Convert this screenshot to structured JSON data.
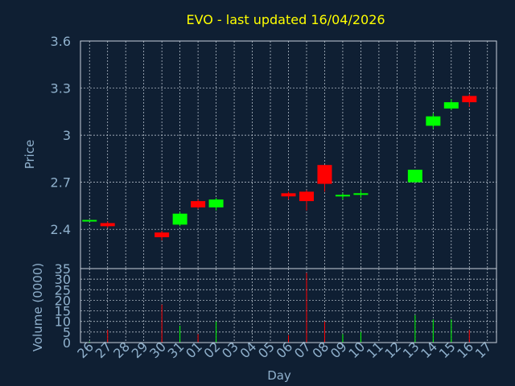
{
  "chart_data": {
    "type": "candlestick",
    "title": "EVO - last updated 16/04/2026",
    "xlabel": "Day",
    "price_ylabel": "Price",
    "volume_ylabel": "Volume (0000)",
    "price_ylim": [
      2.15,
      3.6
    ],
    "price_yticks": [
      2.4,
      2.7,
      3,
      3.3,
      3.6
    ],
    "volume_ylim": [
      0,
      35
    ],
    "volume_yticks": [
      0,
      5,
      10,
      15,
      20,
      25,
      30,
      35
    ],
    "x_ticks": [
      "26",
      "27",
      "28",
      "29",
      "30",
      "31",
      "01",
      "02",
      "03",
      "04",
      "05",
      "06",
      "07",
      "08",
      "09",
      "10",
      "11",
      "12",
      "13",
      "14",
      "15",
      "16",
      "17"
    ],
    "grid": true,
    "colors": {
      "up": "#00ff00",
      "down": "#ff0000",
      "title": "#ffff00",
      "axis_text": "#8fb0cc",
      "background": "#0f1f33",
      "grid": "#c8d2dc"
    },
    "candles": [
      {
        "day": "26",
        "open": 2.45,
        "close": 2.46,
        "high": 2.46,
        "low": 2.45,
        "volume": 0.5
      },
      {
        "day": "27",
        "open": 2.44,
        "close": 2.42,
        "high": 2.45,
        "low": 2.41,
        "volume": 6
      },
      {
        "day": "30",
        "open": 2.38,
        "close": 2.35,
        "high": 2.39,
        "low": 2.33,
        "volume": 18
      },
      {
        "day": "31",
        "open": 2.43,
        "close": 2.5,
        "high": 2.51,
        "low": 2.42,
        "volume": 8
      },
      {
        "day": "01",
        "open": 2.58,
        "close": 2.54,
        "high": 2.59,
        "low": 2.53,
        "volume": 4
      },
      {
        "day": "02",
        "open": 2.54,
        "close": 2.59,
        "high": 2.6,
        "low": 2.52,
        "volume": 10
      },
      {
        "day": "06",
        "open": 2.63,
        "close": 2.61,
        "high": 2.64,
        "low": 2.59,
        "volume": 3.5
      },
      {
        "day": "07",
        "open": 2.64,
        "close": 2.58,
        "high": 2.65,
        "low": 2.52,
        "volume": 33
      },
      {
        "day": "08",
        "open": 2.81,
        "close": 2.69,
        "high": 2.81,
        "low": 2.64,
        "volume": 10
      },
      {
        "day": "09",
        "open": 2.61,
        "close": 2.62,
        "high": 2.63,
        "low": 2.59,
        "volume": 4
      },
      {
        "day": "10",
        "open": 2.62,
        "close": 2.63,
        "high": 2.65,
        "low": 2.6,
        "volume": 5
      },
      {
        "day": "13",
        "open": 2.7,
        "close": 2.78,
        "high": 2.78,
        "low": 2.7,
        "volume": 13
      },
      {
        "day": "14",
        "open": 3.06,
        "close": 3.12,
        "high": 3.14,
        "low": 3.04,
        "volume": 11
      },
      {
        "day": "15",
        "open": 3.17,
        "close": 3.21,
        "high": 3.23,
        "low": 3.16,
        "volume": 11
      },
      {
        "day": "16",
        "open": 3.25,
        "close": 3.21,
        "high": 3.26,
        "low": 3.18,
        "volume": 6
      }
    ]
  }
}
